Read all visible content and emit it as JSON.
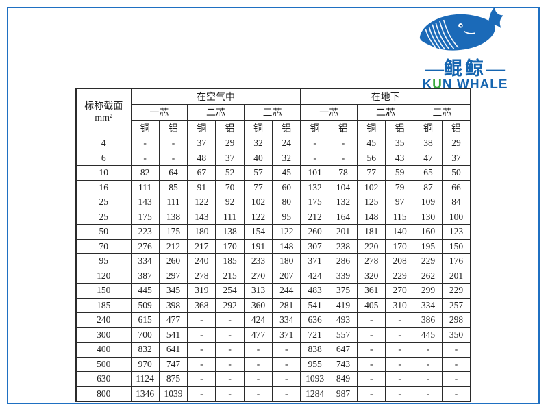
{
  "logo": {
    "dash": "—",
    "cn_name": "鲲鲸",
    "en_k": "K",
    "en_u": "U",
    "en_rest": "N WHALE",
    "brand_blue": "#1565b0",
    "brand_green": "#3aa93f"
  },
  "table": {
    "corner_line1": "标称截面",
    "corner_line2": "mm²",
    "groups": [
      "在空气中",
      "在地下"
    ],
    "cores": [
      "一芯",
      "二芯",
      "三芯",
      "一芯",
      "二芯",
      "三芯"
    ],
    "materials": [
      "铜",
      "铝",
      "铜",
      "铝",
      "铜",
      "铝",
      "铜",
      "铝",
      "铜",
      "铝",
      "铜",
      "铝"
    ],
    "rows": [
      {
        "section": "4",
        "values": [
          "-",
          "-",
          "37",
          "29",
          "32",
          "24",
          "-",
          "-",
          "45",
          "35",
          "38",
          "29"
        ]
      },
      {
        "section": "6",
        "values": [
          "-",
          "-",
          "48",
          "37",
          "40",
          "32",
          "-",
          "-",
          "56",
          "43",
          "47",
          "37"
        ]
      },
      {
        "section": "10",
        "values": [
          "82",
          "64",
          "67",
          "52",
          "57",
          "45",
          "101",
          "78",
          "77",
          "59",
          "65",
          "50"
        ]
      },
      {
        "section": "16",
        "values": [
          "111",
          "85",
          "91",
          "70",
          "77",
          "60",
          "132",
          "104",
          "102",
          "79",
          "87",
          "66"
        ]
      },
      {
        "section": "25",
        "values": [
          "143",
          "111",
          "122",
          "92",
          "102",
          "80",
          "175",
          "132",
          "125",
          "97",
          "109",
          "84"
        ]
      },
      {
        "section": "25",
        "values": [
          "175",
          "138",
          "143",
          "111",
          "122",
          "95",
          "212",
          "164",
          "148",
          "115",
          "130",
          "100"
        ]
      },
      {
        "section": "50",
        "values": [
          "223",
          "175",
          "180",
          "138",
          "154",
          "122",
          "260",
          "201",
          "181",
          "140",
          "160",
          "123"
        ]
      },
      {
        "section": "70",
        "values": [
          "276",
          "212",
          "217",
          "170",
          "191",
          "148",
          "307",
          "238",
          "220",
          "170",
          "195",
          "150"
        ]
      },
      {
        "section": "95",
        "values": [
          "334",
          "260",
          "240",
          "185",
          "233",
          "180",
          "371",
          "286",
          "278",
          "208",
          "229",
          "176"
        ]
      },
      {
        "section": "120",
        "values": [
          "387",
          "297",
          "278",
          "215",
          "270",
          "207",
          "424",
          "339",
          "320",
          "229",
          "262",
          "201"
        ]
      },
      {
        "section": "150",
        "values": [
          "445",
          "345",
          "319",
          "254",
          "313",
          "244",
          "483",
          "375",
          "361",
          "270",
          "299",
          "229"
        ]
      },
      {
        "section": "185",
        "values": [
          "509",
          "398",
          "368",
          "292",
          "360",
          "281",
          "541",
          "419",
          "405",
          "310",
          "334",
          "257"
        ]
      },
      {
        "section": "240",
        "values": [
          "615",
          "477",
          "-",
          "-",
          "424",
          "334",
          "636",
          "493",
          "-",
          "-",
          "386",
          "298"
        ]
      },
      {
        "section": "300",
        "values": [
          "700",
          "541",
          "-",
          "-",
          "477",
          "371",
          "721",
          "557",
          "-",
          "-",
          "445",
          "350"
        ]
      },
      {
        "section": "400",
        "values": [
          "832",
          "641",
          "-",
          "-",
          "-",
          "-",
          "838",
          "647",
          "-",
          "-",
          "-",
          "-"
        ]
      },
      {
        "section": "500",
        "values": [
          "970",
          "747",
          "-",
          "-",
          "-",
          "-",
          "955",
          "743",
          "-",
          "-",
          "-",
          "-"
        ]
      },
      {
        "section": "630",
        "values": [
          "1124",
          "875",
          "-",
          "-",
          "-",
          "-",
          "1093",
          "849",
          "-",
          "-",
          "-",
          "-"
        ]
      },
      {
        "section": "800",
        "values": [
          "1346",
          "1039",
          "-",
          "-",
          "-",
          "-",
          "1284",
          "987",
          "-",
          "-",
          "-",
          "-"
        ]
      }
    ]
  }
}
